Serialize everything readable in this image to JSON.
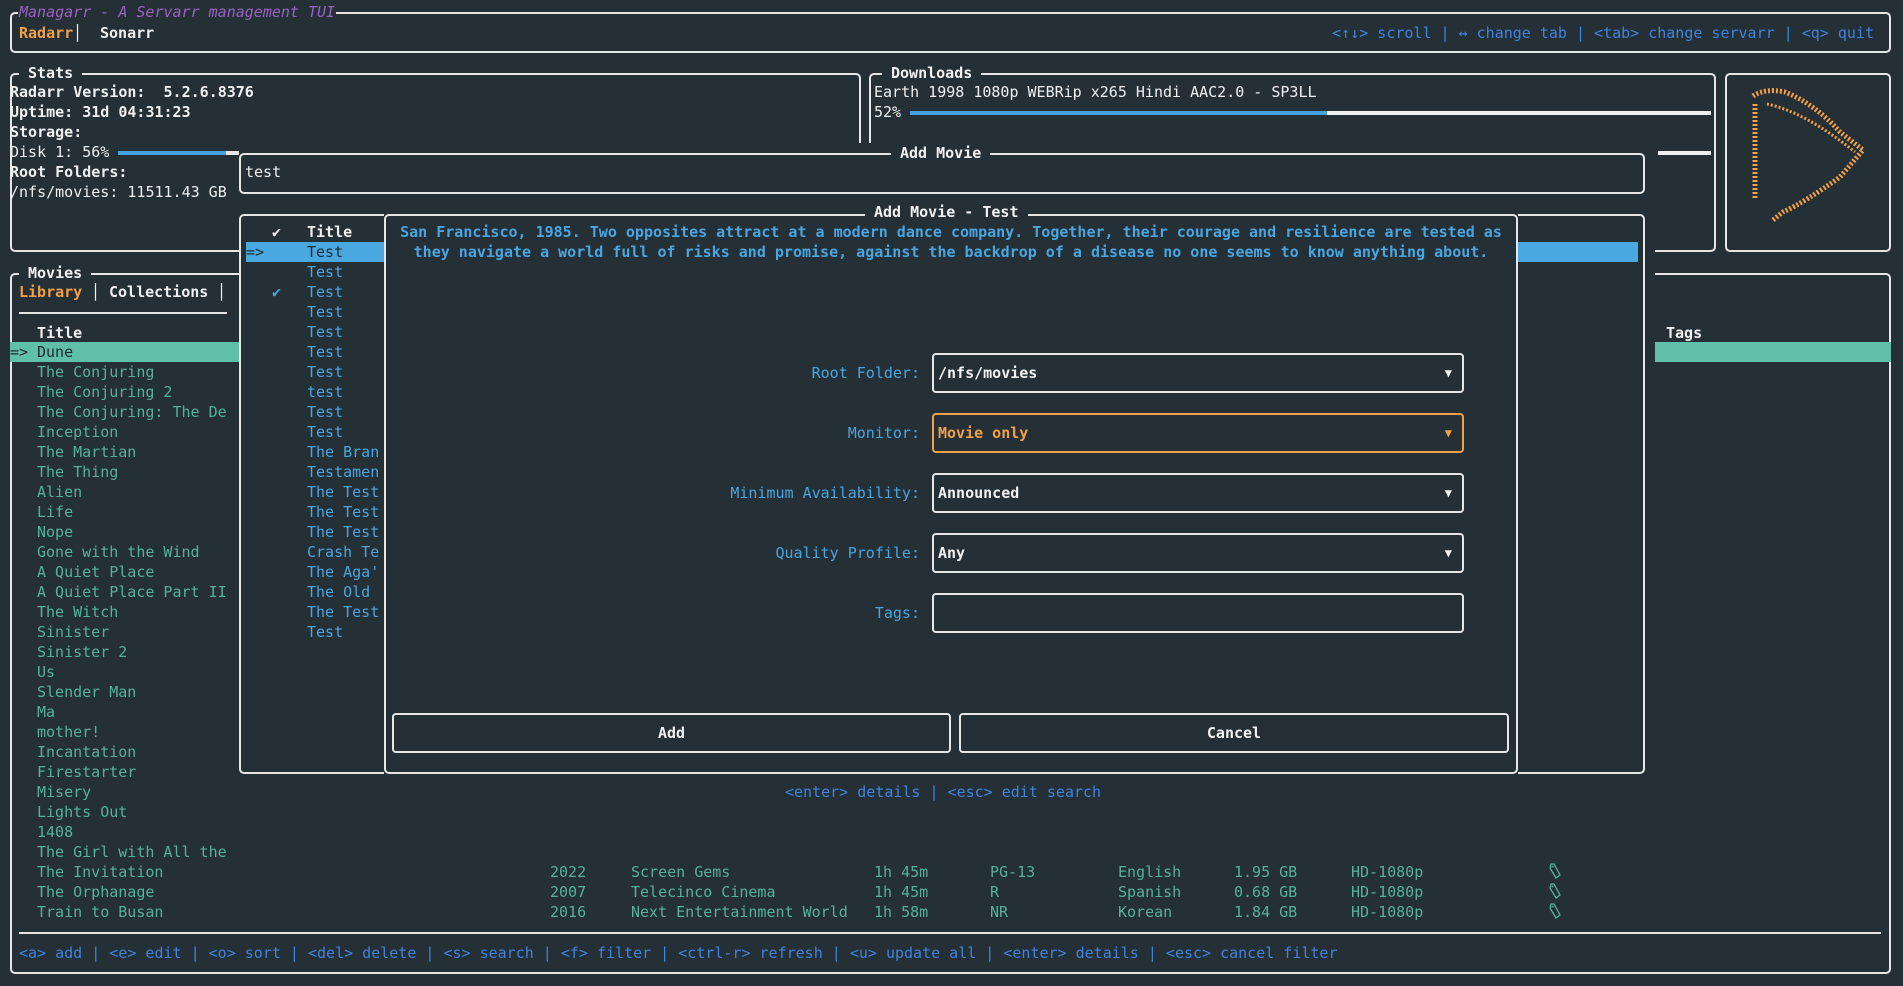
{
  "app": {
    "title": "Managarr - A Servarr management TUI",
    "servarr_tabs": [
      {
        "label": "Radarr",
        "active": true
      },
      {
        "label": "Sonarr",
        "active": false
      }
    ],
    "help": "<↑↓> scroll | ↔ change tab | <tab> change servarr | <q> quit"
  },
  "stats": {
    "title": "Stats",
    "version_label": "Radarr Version:  5.2.6.8376",
    "uptime": "Uptime: 31d 04:31:23",
    "storage_label": "Storage:",
    "disk": "Disk 1: 56%",
    "disk_percent": 56,
    "root_folders_label": "Root Folders:",
    "root_folder": "/nfs/movies: 11511.43 GB"
  },
  "downloads": {
    "title": "Downloads",
    "item": "Earth 1998 1080p WEBRip x265 Hindi AAC2.0 - SP3LL",
    "percent_label": "52%",
    "percent": 52
  },
  "movies": {
    "title": "Movies",
    "tabs": [
      {
        "label": "Library",
        "active": true
      },
      {
        "label": "Collections",
        "active": false
      }
    ],
    "columns": {
      "title": "Title",
      "tags": "Tags"
    },
    "selected_marker": "=>",
    "rows": [
      {
        "title": "Dune"
      },
      {
        "title": "The Conjuring"
      },
      {
        "title": "The Conjuring 2"
      },
      {
        "title": "The Conjuring: The De"
      },
      {
        "title": "Inception"
      },
      {
        "title": "The Martian"
      },
      {
        "title": "The Thing"
      },
      {
        "title": "Alien"
      },
      {
        "title": "Life"
      },
      {
        "title": "Nope"
      },
      {
        "title": "Gone with the Wind"
      },
      {
        "title": "A Quiet Place"
      },
      {
        "title": "A Quiet Place Part II"
      },
      {
        "title": "The Witch"
      },
      {
        "title": "Sinister"
      },
      {
        "title": "Sinister 2"
      },
      {
        "title": "Us"
      },
      {
        "title": "Slender Man"
      },
      {
        "title": "Ma"
      },
      {
        "title": "mother!"
      },
      {
        "title": "Incantation"
      },
      {
        "title": "Firestarter"
      },
      {
        "title": "Misery"
      },
      {
        "title": "Lights Out"
      },
      {
        "title": "1408"
      },
      {
        "title": "The Girl with All the"
      },
      {
        "title": "The Invitation",
        "year": "2022",
        "studio": "Screen Gems",
        "runtime": "1h 45m",
        "rating": "PG-13",
        "language": "English",
        "size": "1.95 GB",
        "quality": "HD-1080p",
        "tag_icon": "tag-icon"
      },
      {
        "title": "The Orphanage",
        "year": "2007",
        "studio": "Telecinco Cinema",
        "runtime": "1h 45m",
        "rating": "R",
        "language": "Spanish",
        "size": "0.68 GB",
        "quality": "HD-1080p",
        "tag_icon": "tag-icon"
      },
      {
        "title": "Train to Busan",
        "year": "2016",
        "studio": "Next Entertainment World",
        "runtime": "1h 58m",
        "rating": "NR",
        "language": "Korean",
        "size": "1.84 GB",
        "quality": "HD-1080p",
        "tag_icon": "tag-icon"
      }
    ],
    "footer_help": "<a> add | <e> edit | <o> sort | <del> delete | <s> search | <f> filter | <ctrl-r> refresh | <u> update all | <enter> details | <esc> cancel filter"
  },
  "add_movie": {
    "title": "Add Movie",
    "search_value": "test",
    "results": {
      "check_header": "✔",
      "title_header": "Title",
      "selected_marker": "=>",
      "rows": [
        {
          "title": "Test",
          "added": false
        },
        {
          "title": "Test",
          "added": false
        },
        {
          "title": "Test",
          "added": true
        },
        {
          "title": "Test",
          "added": false
        },
        {
          "title": "Test",
          "added": false
        },
        {
          "title": "Test",
          "added": false
        },
        {
          "title": "Test",
          "added": false
        },
        {
          "title": "test",
          "added": false
        },
        {
          "title": "Test",
          "added": false
        },
        {
          "title": "Test",
          "added": false
        },
        {
          "title": "The Bran",
          "added": false
        },
        {
          "title": "Testamen",
          "added": false
        },
        {
          "title": "The Test",
          "added": false
        },
        {
          "title": "The Test",
          "added": false
        },
        {
          "title": "The Test",
          "added": false
        },
        {
          "title": "Crash Te",
          "added": false
        },
        {
          "title": "The Aga'",
          "added": false
        },
        {
          "title": "The Old",
          "added": false
        },
        {
          "title": "The Test",
          "added": false
        },
        {
          "title": "Test",
          "added": false
        }
      ]
    },
    "help": "<enter> details | <esc> edit search"
  },
  "add_movie_dialog": {
    "title": "Add Movie - Test",
    "overview_line1": "San Francisco, 1985. Two opposites attract at a modern dance company. Together, their courage and resilience are tested as",
    "overview_line2": "they navigate a world full of risks and promise, against the backdrop of a disease no one seems to know anything about.",
    "fields": {
      "root_folder": {
        "label": "Root Folder:",
        "value": "/nfs/movies"
      },
      "monitor": {
        "label": "Monitor:",
        "value": "Movie only",
        "focused": true
      },
      "minimum_availability": {
        "label": "Minimum Availability:",
        "value": "Announced"
      },
      "quality_profile": {
        "label": "Quality Profile:",
        "value": "Any"
      },
      "tags": {
        "label": "Tags:",
        "value": ""
      }
    },
    "dropdown_arrow": "▼",
    "add_label": "Add",
    "cancel_label": "Cancel"
  },
  "colors": {
    "background": "#242f36",
    "accent_orange": "#f3a046",
    "title_purple": "#9b62c4",
    "help_blue": "#3f84de",
    "dialog_blue": "#4aa6e0",
    "movie_teal": "#55b29a",
    "selected_row_bg": "#5fbfa9",
    "selected_result_bg": "#4aa8e0"
  }
}
